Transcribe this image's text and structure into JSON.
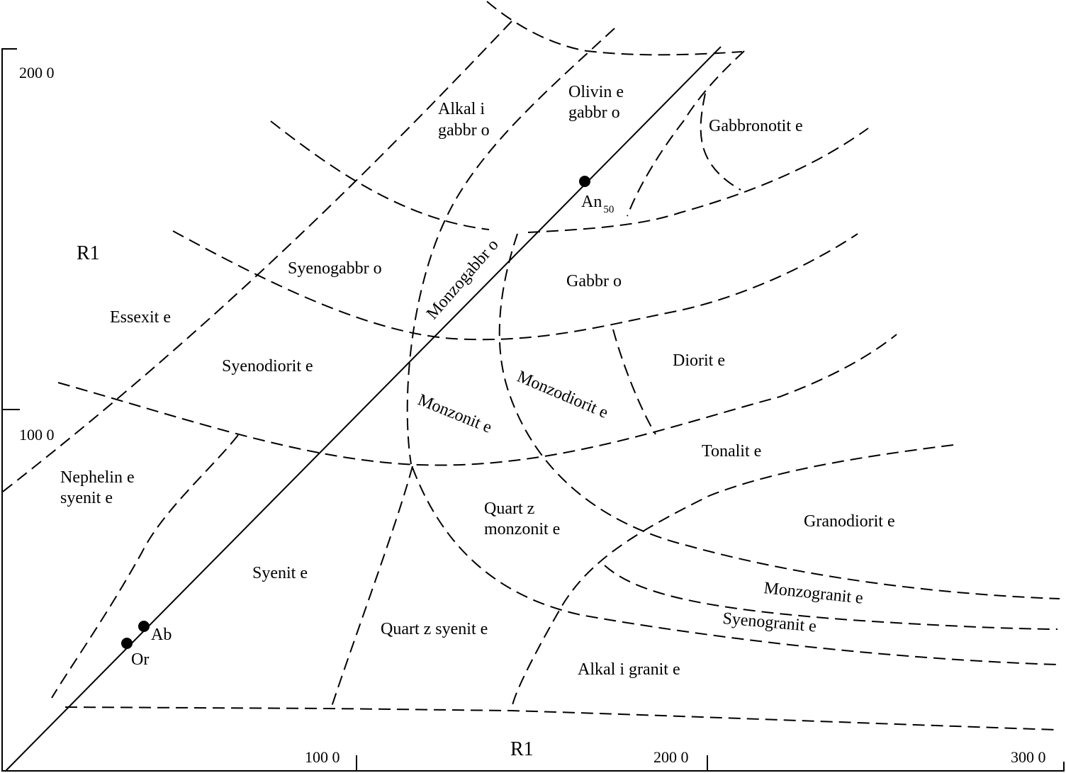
{
  "axes": {
    "y_label": "R1",
    "x_label": "R1",
    "y_ticks": [
      "200 0",
      "100 0"
    ],
    "x_ticks": [
      "100 0",
      "200 0",
      "300 0"
    ]
  },
  "fields": {
    "alkali_gabbro_1": "Alkal i",
    "alkali_gabbro_2": "gabbr o",
    "olivine_gabbro_1": "Olivin e",
    "olivine_gabbro_2": "gabbr o",
    "gabbronorite": "Gabbronotit  e",
    "syenogabbro": "Syenogabbr  o",
    "monzogabbro": "Monzogabbr  o",
    "gabbro": "Gabbr o",
    "essexite": "Essexit  e",
    "syenodiorite": "Syenodiorit  e",
    "diorite": "Diorit e",
    "monzodiorite": "Monzodiorit  e",
    "monzonite": "Monzonit e",
    "tonalite": "Tonalit e",
    "nepheline_syenite_1": "Nephelin  e",
    "nepheline_syenite_2": "syenit e",
    "quartz_monzonite_1": "Quart z",
    "quartz_monzonite_2": "monzonit  e",
    "granodiorite": "Granodiorit  e",
    "syenite": "Syenit e",
    "monzogranite": "Monzogranit  e",
    "syenogranite": "Syenogranit  e",
    "quartz_syenite": "Quart z syenit e",
    "alkali_granite": "Alkal i granit e"
  },
  "points": {
    "an": "An",
    "an_sub": "50",
    "ab": "Ab",
    "or": "Or"
  }
}
